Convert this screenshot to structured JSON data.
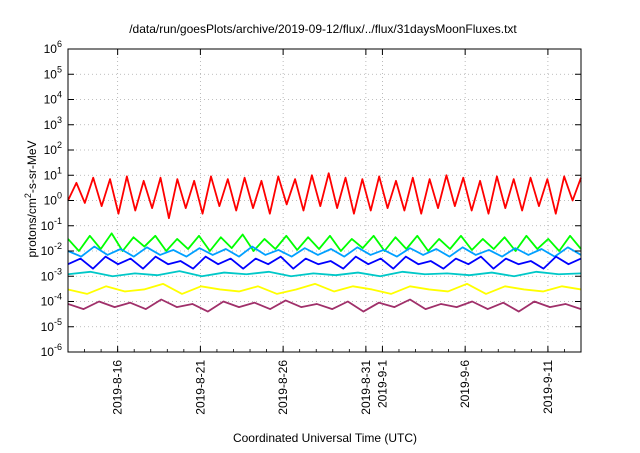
{
  "chart_data": {
    "type": "line",
    "title": "/data/run/goesPlots/archive/2019-09-12/flux/../flux/31daysMoonFluxes.txt",
    "xlabel": "Coordinated Universal Time (UTC)",
    "ylabel_main": "protons/cm",
    "ylabel_sup": "2",
    "ylabel_rest": "-s-sr-MeV",
    "y_scale": "log",
    "ylim_exp": [
      -6,
      6
    ],
    "xlim_days": [
      "2019-08-13",
      "2019-09-13"
    ],
    "grid": true,
    "x_ticks": [
      {
        "label": "2019-8-16",
        "date": "2019-08-16"
      },
      {
        "label": "2019-8-21",
        "date": "2019-08-21"
      },
      {
        "label": "2019-8-26",
        "date": "2019-08-26"
      },
      {
        "label": "2019-8-31",
        "date": "2019-08-31"
      },
      {
        "label": "2019-9-1",
        "date": "2019-09-01"
      },
      {
        "label": "2019-9-6",
        "date": "2019-09-06"
      },
      {
        "label": "2019-9-11",
        "date": "2019-09-11"
      }
    ],
    "y_ticks": [
      {
        "base": "10",
        "exp": "-6",
        "value": 1e-06
      },
      {
        "base": "10",
        "exp": "-5",
        "value": 1e-05
      },
      {
        "base": "10",
        "exp": "-4",
        "value": 0.0001
      },
      {
        "base": "10",
        "exp": "-3",
        "value": 0.001
      },
      {
        "base": "10",
        "exp": "-2",
        "value": 0.01
      },
      {
        "base": "10",
        "exp": "-1",
        "value": 0.1
      },
      {
        "base": "10",
        "exp": "0",
        "value": 1
      },
      {
        "base": "10",
        "exp": "1",
        "value": 10
      },
      {
        "base": "10",
        "exp": "2",
        "value": 100
      },
      {
        "base": "10",
        "exp": "3",
        "value": 1000
      },
      {
        "base": "10",
        "exp": "4",
        "value": 10000
      },
      {
        "base": "10",
        "exp": "5",
        "value": 100000
      },
      {
        "base": "10",
        "exp": "6",
        "value": 1000000
      }
    ],
    "series": [
      {
        "color": "#ff0000",
        "values": [
          1.0,
          5.0,
          0.8,
          8.0,
          0.6,
          7.0,
          0.3,
          9.0,
          0.4,
          6.0,
          0.5,
          8.0,
          0.2,
          7.0,
          0.5,
          6.0,
          0.3,
          9.0,
          0.6,
          7.0,
          0.4,
          8.0,
          0.5,
          6.0,
          0.3,
          9.0,
          0.7,
          7.0,
          0.4,
          10.0,
          0.6,
          12.0,
          0.5,
          8.0,
          0.3,
          7.0,
          0.4,
          9.0,
          0.5,
          6.0,
          0.4,
          8.0,
          0.3,
          7.0,
          0.5,
          10.0,
          0.6,
          8.0,
          0.4,
          6.0,
          0.3,
          9.0,
          0.5,
          7.0,
          0.4,
          8.0,
          0.6,
          7.0,
          0.3,
          9.0,
          1.0,
          8.0
        ]
      },
      {
        "color": "#00ff00",
        "values": [
          0.03,
          0.01,
          0.04,
          0.012,
          0.05,
          0.01,
          0.035,
          0.015,
          0.04,
          0.01,
          0.03,
          0.012,
          0.04,
          0.01,
          0.035,
          0.013,
          0.045,
          0.01,
          0.03,
          0.012,
          0.04,
          0.011,
          0.035,
          0.012,
          0.04,
          0.01,
          0.03,
          0.013,
          0.04,
          0.01,
          0.035,
          0.012,
          0.04,
          0.01,
          0.03,
          0.012,
          0.04,
          0.011,
          0.03,
          0.012,
          0.035,
          0.01,
          0.04,
          0.012,
          0.03,
          0.01,
          0.04,
          0.012
        ]
      },
      {
        "color": "#00a0ff",
        "values": [
          0.01,
          0.006,
          0.015,
          0.007,
          0.012,
          0.006,
          0.014,
          0.007,
          0.011,
          0.006,
          0.013,
          0.007,
          0.012,
          0.006,
          0.015,
          0.007,
          0.011,
          0.006,
          0.013,
          0.007,
          0.012,
          0.006,
          0.014,
          0.007,
          0.011,
          0.006,
          0.013,
          0.007,
          0.012,
          0.006,
          0.014,
          0.007,
          0.011,
          0.006,
          0.013,
          0.007,
          0.012,
          0.006,
          0.014,
          0.007
        ]
      },
      {
        "color": "#0000ff",
        "values": [
          0.003,
          0.005,
          0.002,
          0.006,
          0.003,
          0.005,
          0.002,
          0.006,
          0.003,
          0.004,
          0.002,
          0.006,
          0.003,
          0.005,
          0.002,
          0.005,
          0.003,
          0.006,
          0.002,
          0.005,
          0.003,
          0.004,
          0.002,
          0.006,
          0.003,
          0.005,
          0.002,
          0.006,
          0.003,
          0.004,
          0.002,
          0.005,
          0.003,
          0.006,
          0.002,
          0.005,
          0.003,
          0.004,
          0.002,
          0.006,
          0.003,
          0.005
        ]
      },
      {
        "color": "#00c8c8",
        "values": [
          0.0012,
          0.0015,
          0.001,
          0.0013,
          0.0011,
          0.0016,
          0.001,
          0.0014,
          0.0012,
          0.0015,
          0.001,
          0.0013,
          0.0011,
          0.0014,
          0.001,
          0.0015,
          0.0012,
          0.0013,
          0.0011,
          0.0014,
          0.001,
          0.0015,
          0.0012,
          0.0013
        ]
      },
      {
        "color": "#ffff00",
        "values": [
          0.0003,
          0.0002,
          0.0004,
          0.00025,
          0.0003,
          0.0005,
          0.0002,
          0.0004,
          0.0003,
          0.00025,
          0.0004,
          0.0002,
          0.0003,
          0.0005,
          0.00025,
          0.0004,
          0.0003,
          0.0002,
          0.0004,
          0.0003,
          0.00025,
          0.0005,
          0.0002,
          0.0004,
          0.0003,
          0.00025,
          0.0004,
          0.0003
        ]
      },
      {
        "color": "#a0306a",
        "values": [
          8e-05,
          5e-05,
          0.0001,
          6e-05,
          9e-05,
          5e-05,
          0.00012,
          6e-05,
          8e-05,
          4e-05,
          0.0001,
          6e-05,
          9e-05,
          5e-05,
          0.00011,
          6e-05,
          8e-05,
          5e-05,
          0.0001,
          4e-05,
          9e-05,
          6e-05,
          0.00012,
          5e-05,
          8e-05,
          6e-05,
          0.0001,
          5e-05,
          9e-05,
          4e-05,
          0.0001,
          6e-05,
          8e-05,
          5e-05
        ]
      }
    ]
  }
}
